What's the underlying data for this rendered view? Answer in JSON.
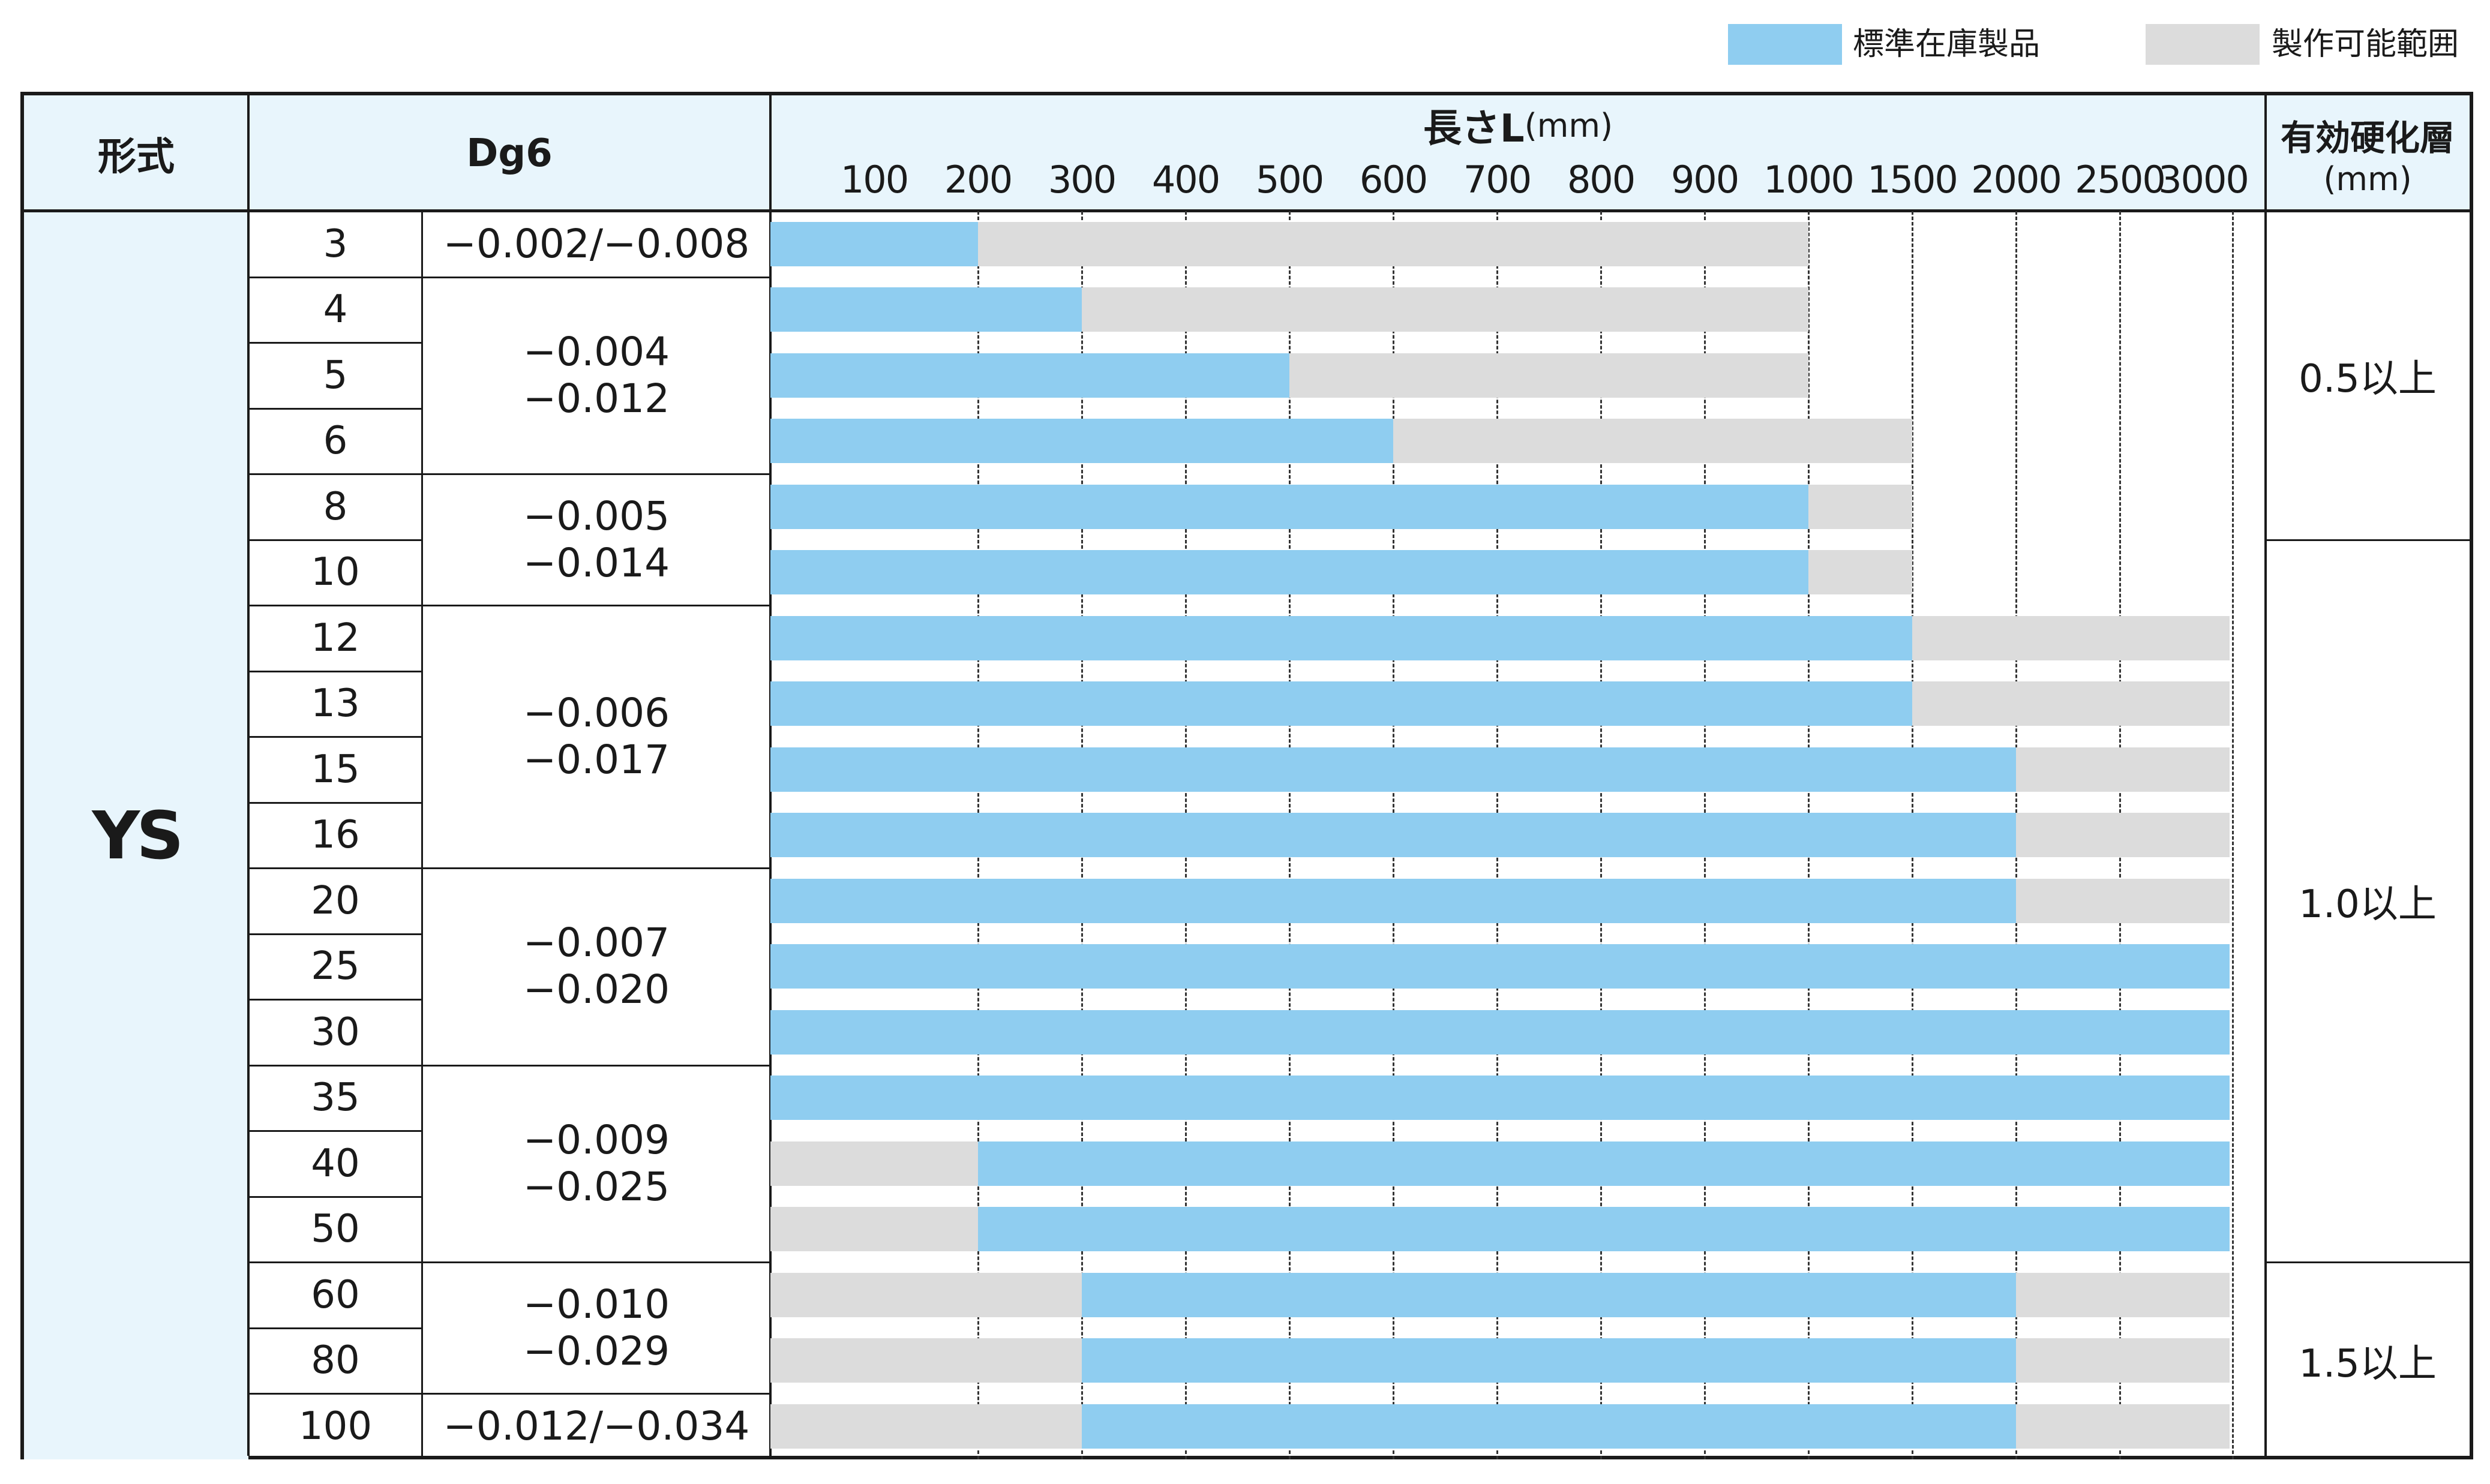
{
  "legend": {
    "standard_label": "標準在庫製品",
    "standard_color": "#8fcdf0",
    "range_label": "製作可能範囲",
    "range_color": "#dcdcdc"
  },
  "header": {
    "model": "形式",
    "dg6": "Dg6",
    "length": "長さL",
    "length_unit": "(mm)",
    "hardened": "有効硬化層",
    "hardened_unit": "(mm)"
  },
  "model_value": "YS",
  "length_ticks": [
    "100",
    "200",
    "300",
    "400",
    "500",
    "600",
    "700",
    "800",
    "900",
    "1000",
    "1500",
    "2000",
    "2500",
    "3000"
  ],
  "rows": [
    {
      "d": "3",
      "std": [
        0,
        200
      ],
      "range": [
        200,
        1000
      ]
    },
    {
      "d": "4",
      "std": [
        0,
        300
      ],
      "range": [
        300,
        1000
      ]
    },
    {
      "d": "5",
      "std": [
        0,
        500
      ],
      "range": [
        500,
        1000
      ]
    },
    {
      "d": "6",
      "std": [
        0,
        600
      ],
      "range": [
        600,
        1500
      ]
    },
    {
      "d": "8",
      "std": [
        0,
        1000
      ],
      "range": [
        1000,
        1500
      ]
    },
    {
      "d": "10",
      "std": [
        0,
        1000
      ],
      "range": [
        1000,
        1500
      ]
    },
    {
      "d": "12",
      "std": [
        0,
        1500
      ],
      "range": [
        1500,
        3000
      ]
    },
    {
      "d": "13",
      "std": [
        0,
        1500
      ],
      "range": [
        1500,
        3000
      ]
    },
    {
      "d": "15",
      "std": [
        0,
        2000
      ],
      "range": [
        2000,
        3000
      ]
    },
    {
      "d": "16",
      "std": [
        0,
        2000
      ],
      "range": [
        2000,
        3000
      ]
    },
    {
      "d": "20",
      "std": [
        0,
        2000
      ],
      "range": [
        2000,
        3000
      ]
    },
    {
      "d": "25",
      "std": [
        0,
        3000
      ],
      "range": null
    },
    {
      "d": "30",
      "std": [
        0,
        3000
      ],
      "range": null
    },
    {
      "d": "35",
      "std": [
        0,
        3000
      ],
      "range": null
    },
    {
      "d": "40",
      "std": [
        200,
        3000
      ],
      "range": [
        0,
        200
      ]
    },
    {
      "d": "50",
      "std": [
        200,
        3000
      ],
      "range": [
        0,
        200
      ]
    },
    {
      "d": "60",
      "std": [
        300,
        2000
      ],
      "range": [
        0,
        300
      ],
      "range2": [
        2000,
        3000
      ]
    },
    {
      "d": "80",
      "std": [
        300,
        2000
      ],
      "range": [
        0,
        300
      ],
      "range2": [
        2000,
        3000
      ]
    },
    {
      "d": "100",
      "std": [
        300,
        2000
      ],
      "range": [
        0,
        300
      ],
      "range2": [
        2000,
        3000
      ]
    }
  ],
  "tolerances": [
    {
      "start": 0,
      "span": 1,
      "lines": [
        "−0.002/−0.008"
      ]
    },
    {
      "start": 1,
      "span": 3,
      "lines": [
        "−0.004",
        "−0.012"
      ]
    },
    {
      "start": 4,
      "span": 2,
      "lines": [
        "−0.005",
        "−0.014"
      ]
    },
    {
      "start": 6,
      "span": 4,
      "lines": [
        "−0.006",
        "−0.017"
      ]
    },
    {
      "start": 10,
      "span": 3,
      "lines": [
        "−0.007",
        "−0.020"
      ]
    },
    {
      "start": 13,
      "span": 3,
      "lines": [
        "−0.009",
        "−0.025"
      ]
    },
    {
      "start": 16,
      "span": 2,
      "lines": [
        "−0.010",
        "−0.029"
      ]
    },
    {
      "start": 18,
      "span": 1,
      "lines": [
        "−0.012/−0.034"
      ]
    }
  ],
  "hardened_groups": [
    {
      "start": 0,
      "span": 5,
      "label": "0.5以上"
    },
    {
      "start": 5,
      "span": 11,
      "label": "1.0以上"
    },
    {
      "start": 16,
      "span": 3,
      "label": "1.5以上"
    }
  ]
}
